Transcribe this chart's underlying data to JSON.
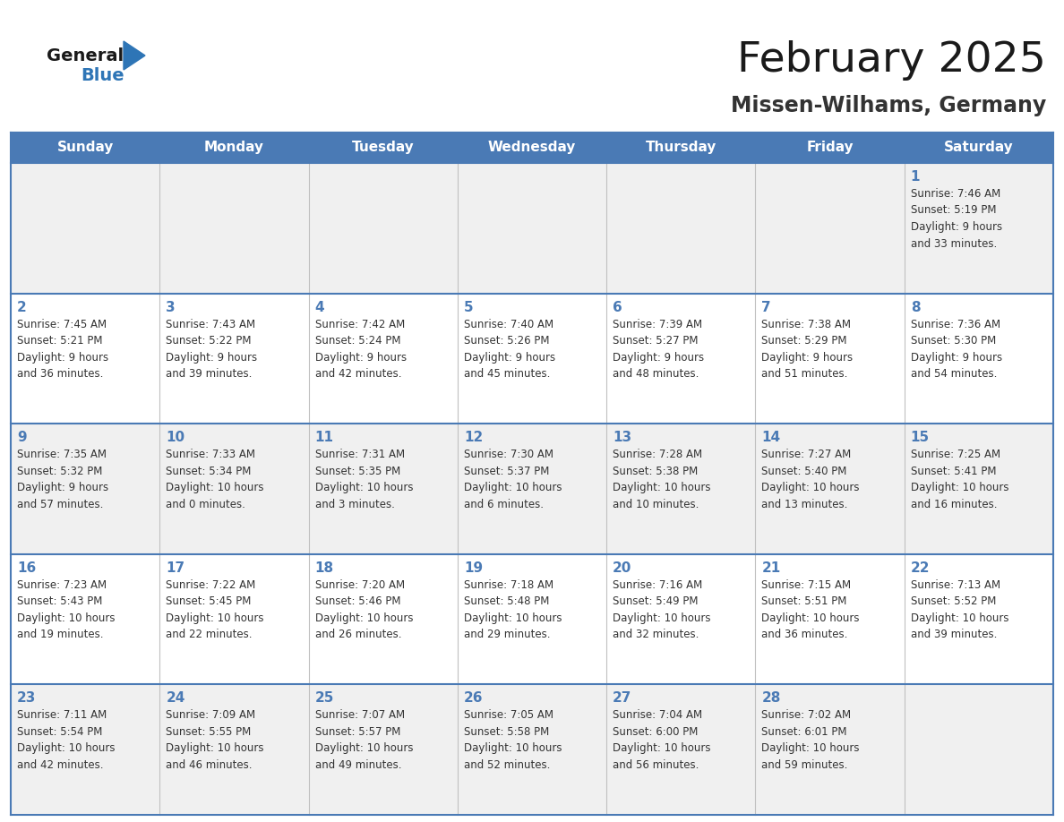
{
  "title": "February 2025",
  "subtitle": "Missen-Wilhams, Germany",
  "days_of_week": [
    "Sunday",
    "Monday",
    "Tuesday",
    "Wednesday",
    "Thursday",
    "Friday",
    "Saturday"
  ],
  "header_bg": "#4a7ab5",
  "header_text": "#ffffff",
  "cell_bg_light": "#f0f0f0",
  "cell_bg_white": "#ffffff",
  "cell_border_color": "#4a7ab5",
  "cell_divider_color": "#c0c0c0",
  "day_number_color": "#4a7ab5",
  "info_text_color": "#333333",
  "title_color": "#1a1a1a",
  "subtitle_color": "#333333",
  "logo_general_color": "#1a1a1a",
  "logo_blue_color": "#2e75b6",
  "calendar_data": [
    [
      null,
      null,
      null,
      null,
      null,
      null,
      {
        "day": 1,
        "sunrise": "7:46 AM",
        "sunset": "5:19 PM",
        "daylight": "9 hours and 33 minutes."
      }
    ],
    [
      {
        "day": 2,
        "sunrise": "7:45 AM",
        "sunset": "5:21 PM",
        "daylight": "9 hours and 36 minutes."
      },
      {
        "day": 3,
        "sunrise": "7:43 AM",
        "sunset": "5:22 PM",
        "daylight": "9 hours and 39 minutes."
      },
      {
        "day": 4,
        "sunrise": "7:42 AM",
        "sunset": "5:24 PM",
        "daylight": "9 hours and 42 minutes."
      },
      {
        "day": 5,
        "sunrise": "7:40 AM",
        "sunset": "5:26 PM",
        "daylight": "9 hours and 45 minutes."
      },
      {
        "day": 6,
        "sunrise": "7:39 AM",
        "sunset": "5:27 PM",
        "daylight": "9 hours and 48 minutes."
      },
      {
        "day": 7,
        "sunrise": "7:38 AM",
        "sunset": "5:29 PM",
        "daylight": "9 hours and 51 minutes."
      },
      {
        "day": 8,
        "sunrise": "7:36 AM",
        "sunset": "5:30 PM",
        "daylight": "9 hours and 54 minutes."
      }
    ],
    [
      {
        "day": 9,
        "sunrise": "7:35 AM",
        "sunset": "5:32 PM",
        "daylight": "9 hours and 57 minutes."
      },
      {
        "day": 10,
        "sunrise": "7:33 AM",
        "sunset": "5:34 PM",
        "daylight": "10 hours and 0 minutes."
      },
      {
        "day": 11,
        "sunrise": "7:31 AM",
        "sunset": "5:35 PM",
        "daylight": "10 hours and 3 minutes."
      },
      {
        "day": 12,
        "sunrise": "7:30 AM",
        "sunset": "5:37 PM",
        "daylight": "10 hours and 6 minutes."
      },
      {
        "day": 13,
        "sunrise": "7:28 AM",
        "sunset": "5:38 PM",
        "daylight": "10 hours and 10 minutes."
      },
      {
        "day": 14,
        "sunrise": "7:27 AM",
        "sunset": "5:40 PM",
        "daylight": "10 hours and 13 minutes."
      },
      {
        "day": 15,
        "sunrise": "7:25 AM",
        "sunset": "5:41 PM",
        "daylight": "10 hours and 16 minutes."
      }
    ],
    [
      {
        "day": 16,
        "sunrise": "7:23 AM",
        "sunset": "5:43 PM",
        "daylight": "10 hours and 19 minutes."
      },
      {
        "day": 17,
        "sunrise": "7:22 AM",
        "sunset": "5:45 PM",
        "daylight": "10 hours and 22 minutes."
      },
      {
        "day": 18,
        "sunrise": "7:20 AM",
        "sunset": "5:46 PM",
        "daylight": "10 hours and 26 minutes."
      },
      {
        "day": 19,
        "sunrise": "7:18 AM",
        "sunset": "5:48 PM",
        "daylight": "10 hours and 29 minutes."
      },
      {
        "day": 20,
        "sunrise": "7:16 AM",
        "sunset": "5:49 PM",
        "daylight": "10 hours and 32 minutes."
      },
      {
        "day": 21,
        "sunrise": "7:15 AM",
        "sunset": "5:51 PM",
        "daylight": "10 hours and 36 minutes."
      },
      {
        "day": 22,
        "sunrise": "7:13 AM",
        "sunset": "5:52 PM",
        "daylight": "10 hours and 39 minutes."
      }
    ],
    [
      {
        "day": 23,
        "sunrise": "7:11 AM",
        "sunset": "5:54 PM",
        "daylight": "10 hours and 42 minutes."
      },
      {
        "day": 24,
        "sunrise": "7:09 AM",
        "sunset": "5:55 PM",
        "daylight": "10 hours and 46 minutes."
      },
      {
        "day": 25,
        "sunrise": "7:07 AM",
        "sunset": "5:57 PM",
        "daylight": "10 hours and 49 minutes."
      },
      {
        "day": 26,
        "sunrise": "7:05 AM",
        "sunset": "5:58 PM",
        "daylight": "10 hours and 52 minutes."
      },
      {
        "day": 27,
        "sunrise": "7:04 AM",
        "sunset": "6:00 PM",
        "daylight": "10 hours and 56 minutes."
      },
      {
        "day": 28,
        "sunrise": "7:02 AM",
        "sunset": "6:01 PM",
        "daylight": "10 hours and 59 minutes."
      },
      null
    ]
  ]
}
